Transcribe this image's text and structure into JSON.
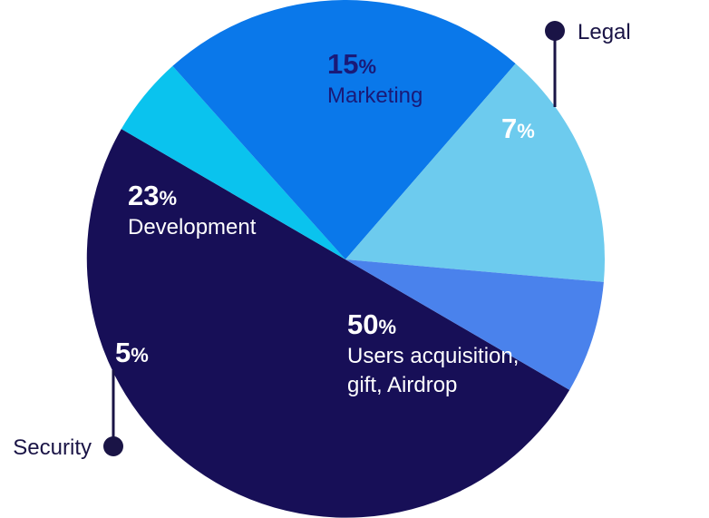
{
  "chart_data": {
    "type": "pie",
    "slices": [
      {
        "name": "Users acquisition, gift, Airdrop",
        "label_lines": [
          "Users acquisition,",
          "gift, Airdrop"
        ],
        "value": 50,
        "pct_text": "50",
        "color": "#170f57",
        "text_color": "#ffffff",
        "pct_color": "#ffffff"
      },
      {
        "name": "Security",
        "label_lines": [],
        "value": 5,
        "pct_text": "5",
        "color": "#0ac3ee",
        "text_color": "#ffffff",
        "pct_color": "#ffffff"
      },
      {
        "name": "Development",
        "label_lines": [
          "Development"
        ],
        "value": 23,
        "pct_text": "23",
        "color": "#0a78ea",
        "text_color": "#ffffff",
        "pct_color": "#ffffff"
      },
      {
        "name": "Marketing",
        "label_lines": [
          "Marketing"
        ],
        "value": 15,
        "pct_text": "15",
        "color": "#6dcbee",
        "text_color": "#1a1a78",
        "pct_color": "#1a1a78"
      },
      {
        "name": "Legal",
        "label_lines": [],
        "value": 7,
        "pct_text": "7",
        "color": "#4a82ec",
        "text_color": "#ffffff",
        "pct_color": "#ffffff"
      }
    ],
    "percent_symbol": "%",
    "callouts": {
      "legal": "Legal",
      "security": "Security"
    },
    "callout_color": "#1a1446"
  }
}
